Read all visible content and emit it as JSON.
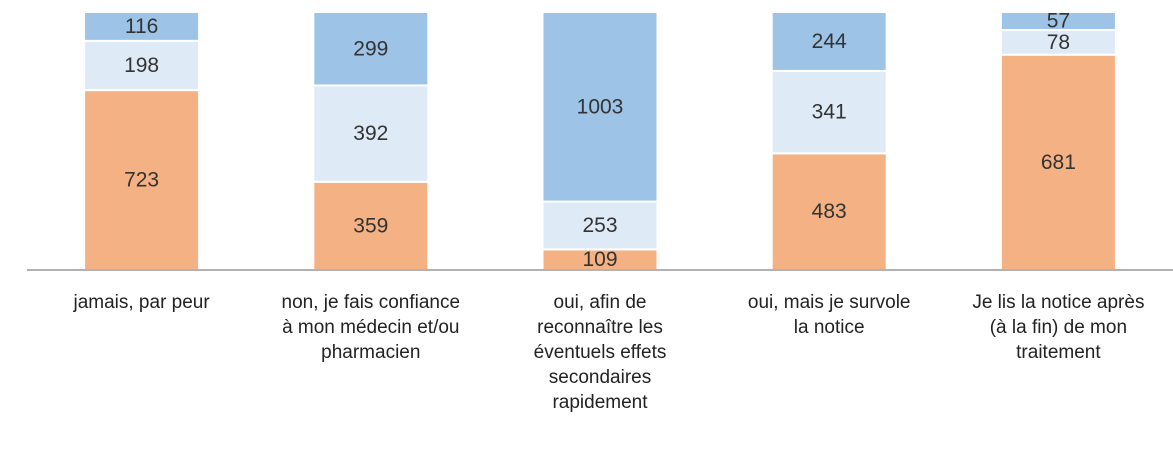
{
  "chart_data": {
    "type": "bar",
    "stacking": "percent",
    "categories": [
      "jamais, par peur",
      "non, je fais confiance\nà mon médecin et/ou\npharmacien",
      "oui, afin de\nreconnaître les\néventuels effets\nsecondaires\nrapidement",
      "oui, mais je survole\nla notice",
      "Je lis la notice après\n(à la fin) de mon\ntraitement"
    ],
    "series": [
      {
        "color": "#f4b183",
        "values": [
          723,
          359,
          109,
          483,
          681
        ]
      },
      {
        "color": "#deebf7",
        "values": [
          198,
          392,
          253,
          341,
          78
        ]
      },
      {
        "color": "#9dc3e6",
        "values": [
          116,
          299,
          1003,
          244,
          57
        ]
      }
    ]
  }
}
